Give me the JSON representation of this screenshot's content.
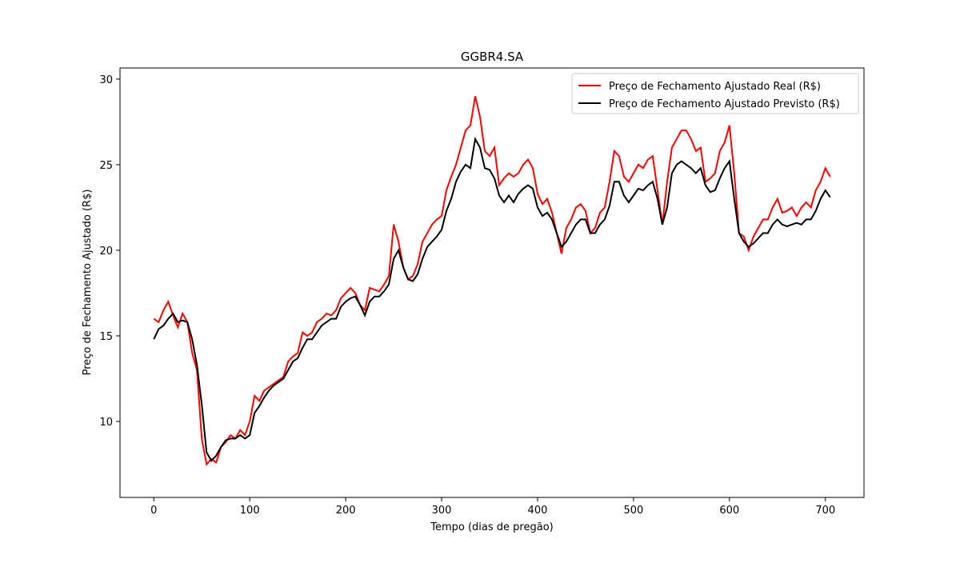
{
  "chart_data": {
    "type": "line",
    "title": "GGBR4.SA",
    "xlabel": "Tempo (dias de pregão)",
    "ylabel": "Preço de Fechamento Ajustado (R$)",
    "legend": "upper right",
    "xlim": [
      -35.25,
      740.25
    ],
    "ylim": [
      5.56,
      30.65
    ],
    "xticks": [
      0,
      100,
      200,
      300,
      400,
      500,
      600,
      700
    ],
    "yticks": [
      10,
      15,
      20,
      25,
      30
    ],
    "x": [
      0,
      5,
      10,
      15,
      20,
      25,
      30,
      35,
      40,
      45,
      50,
      55,
      60,
      65,
      70,
      75,
      80,
      85,
      90,
      95,
      100,
      105,
      110,
      115,
      120,
      125,
      130,
      135,
      140,
      145,
      150,
      155,
      160,
      165,
      170,
      175,
      180,
      185,
      190,
      195,
      200,
      205,
      210,
      215,
      220,
      225,
      230,
      235,
      240,
      245,
      250,
      255,
      260,
      265,
      270,
      275,
      280,
      285,
      290,
      295,
      300,
      305,
      310,
      315,
      320,
      325,
      330,
      335,
      340,
      345,
      350,
      355,
      360,
      365,
      370,
      375,
      380,
      385,
      390,
      395,
      400,
      405,
      410,
      415,
      420,
      425,
      430,
      435,
      440,
      445,
      450,
      455,
      460,
      465,
      470,
      475,
      480,
      485,
      490,
      495,
      500,
      505,
      510,
      515,
      520,
      525,
      530,
      535,
      540,
      545,
      550,
      555,
      560,
      565,
      570,
      575,
      580,
      585,
      590,
      595,
      600,
      605,
      610,
      615,
      620,
      625,
      630,
      635,
      640,
      645,
      650,
      655,
      660,
      665,
      670,
      675,
      680,
      685,
      690,
      695,
      700,
      705
    ],
    "series": [
      {
        "name": "Preço de Fechamento Ajustado Real (R$)",
        "color": "#ff0000",
        "values": [
          16.0,
          15.8,
          16.5,
          17.0,
          16.2,
          15.5,
          16.3,
          15.8,
          14.0,
          13.0,
          9.0,
          7.5,
          7.8,
          7.6,
          8.5,
          8.8,
          9.2,
          9.0,
          9.5,
          9.2,
          10.0,
          11.5,
          11.2,
          11.8,
          12.0,
          12.2,
          12.4,
          12.6,
          13.5,
          13.8,
          14.0,
          15.2,
          15.0,
          15.2,
          15.8,
          16.0,
          16.3,
          16.2,
          16.5,
          17.2,
          17.5,
          17.8,
          17.5,
          16.8,
          16.5,
          17.8,
          17.7,
          17.6,
          18.0,
          18.5,
          21.5,
          20.5,
          19.0,
          18.3,
          18.5,
          19.2,
          20.5,
          21.0,
          21.5,
          21.8,
          22.0,
          23.5,
          24.3,
          25.0,
          26.0,
          27.0,
          27.3,
          29.0,
          27.8,
          25.8,
          25.5,
          26.0,
          23.8,
          24.2,
          24.5,
          24.3,
          24.5,
          25.0,
          25.3,
          24.8,
          23.3,
          22.7,
          23.0,
          22.2,
          21.0,
          19.8,
          21.3,
          21.8,
          22.5,
          22.7,
          22.3,
          21.0,
          21.3,
          22.2,
          22.5,
          24.0,
          25.8,
          25.5,
          24.3,
          24.0,
          24.5,
          25.0,
          24.8,
          25.3,
          25.5,
          23.5,
          21.5,
          24.0,
          26.0,
          26.5,
          27.0,
          27.0,
          26.5,
          25.8,
          26.0,
          24.0,
          24.2,
          24.5,
          25.8,
          26.3,
          27.3,
          24.5,
          21.0,
          20.8,
          20.0,
          20.8,
          21.3,
          21.8,
          21.8,
          22.5,
          23.0,
          22.2,
          22.3,
          22.5,
          22.0,
          22.5,
          22.8,
          22.5,
          23.5,
          24.0,
          24.8,
          24.3
        ]
      },
      {
        "name": "Preço de Fechamento Ajustado Previsto (R$)",
        "color": "#000000",
        "values": [
          14.8,
          15.4,
          15.6,
          16.0,
          16.3,
          15.8,
          15.9,
          15.8,
          14.8,
          13.3,
          11.0,
          8.2,
          7.7,
          8.0,
          8.5,
          8.9,
          9.0,
          9.0,
          9.2,
          9.0,
          9.2,
          10.5,
          10.9,
          11.4,
          11.8,
          12.1,
          12.3,
          12.5,
          13.0,
          13.5,
          13.7,
          14.3,
          14.8,
          14.8,
          15.2,
          15.6,
          15.8,
          16.0,
          16.0,
          16.7,
          17.0,
          17.2,
          17.3,
          16.8,
          16.2,
          17.0,
          17.3,
          17.3,
          17.6,
          18.0,
          19.5,
          20.0,
          19.0,
          18.3,
          18.2,
          18.6,
          19.5,
          20.2,
          20.5,
          20.8,
          21.2,
          22.3,
          23.0,
          24.0,
          24.6,
          25.0,
          24.8,
          26.5,
          26.0,
          24.8,
          24.7,
          24.2,
          23.2,
          22.8,
          23.2,
          22.8,
          23.3,
          23.6,
          23.8,
          23.6,
          22.5,
          22.0,
          22.2,
          21.8,
          21.0,
          20.2,
          20.5,
          21.0,
          21.5,
          21.8,
          21.8,
          21.0,
          21.0,
          21.5,
          21.8,
          22.6,
          24.0,
          24.0,
          23.2,
          22.8,
          23.2,
          23.6,
          23.5,
          23.8,
          24.0,
          23.0,
          21.5,
          22.5,
          24.5,
          25.0,
          25.2,
          25.0,
          24.8,
          24.5,
          24.8,
          23.8,
          23.4,
          23.5,
          24.2,
          24.8,
          25.2,
          23.0,
          21.0,
          20.5,
          20.2,
          20.4,
          20.7,
          21.0,
          21.0,
          21.5,
          21.8,
          21.5,
          21.4,
          21.5,
          21.6,
          21.5,
          21.8,
          21.8,
          22.3,
          23.0,
          23.5,
          23.1
        ]
      }
    ]
  }
}
